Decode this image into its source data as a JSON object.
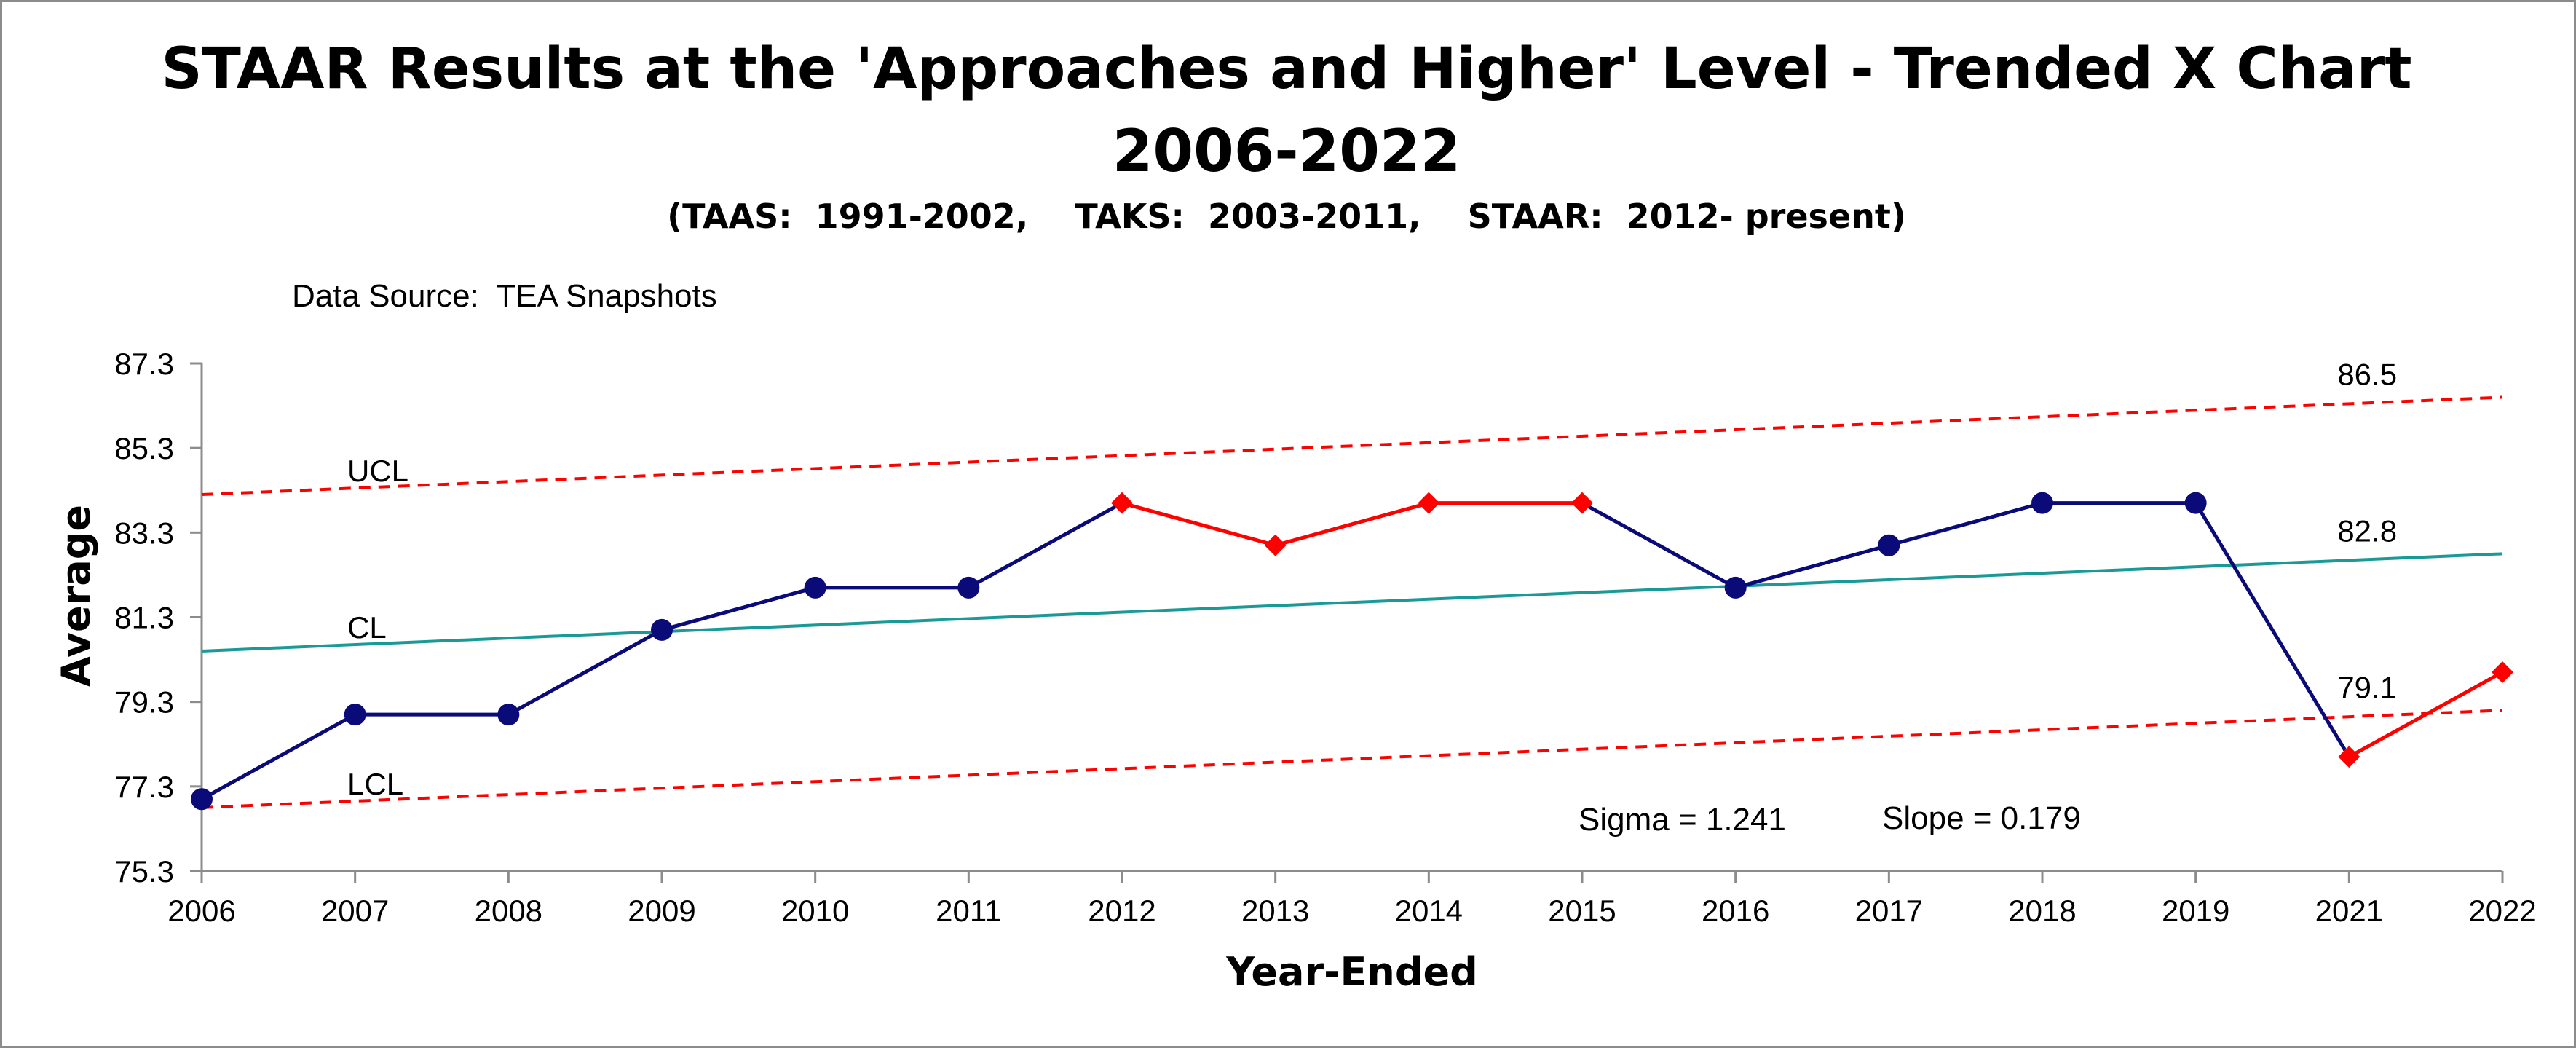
{
  "chart_data": {
    "type": "line",
    "title_line1": "STAAR Results at the 'Approaches and Higher' Level - Trended X Chart",
    "title_line2": "2006-2022",
    "subtitle": "(TAAS:  1991-2002,    TAKS:  2003-2011,    STAAR:  2012- present)",
    "source_note": "Data Source:  TEA Snapshots",
    "xlabel": "Year-Ended",
    "ylabel": "Average",
    "categories": [
      "2006",
      "2007",
      "2008",
      "2009",
      "2010",
      "2011",
      "2012",
      "2013",
      "2014",
      "2015",
      "2016",
      "2017",
      "2018",
      "2019",
      "2021",
      "2022"
    ],
    "yticks": [
      "75.3",
      "77.3",
      "79.3",
      "81.3",
      "83.3",
      "85.3",
      "87.3"
    ],
    "ylim": [
      75.3,
      87.3
    ],
    "series": [
      {
        "name": "Average",
        "values": [
          77.0,
          79.0,
          79.0,
          81.0,
          82.0,
          82.0,
          84.0,
          83.0,
          84.0,
          84.0,
          82.0,
          83.0,
          84.0,
          84.0,
          78.0,
          80.0
        ],
        "flagged": [
          false,
          false,
          false,
          false,
          false,
          false,
          true,
          true,
          true,
          true,
          false,
          false,
          false,
          false,
          true,
          true
        ],
        "color": "#0a0a78",
        "flag_color": "#ff0000"
      }
    ],
    "control_lines": [
      {
        "name": "UCL",
        "start": 84.2,
        "end": 86.5,
        "end_label": "86.5",
        "color": "#ff0000",
        "dashed": true
      },
      {
        "name": "CL",
        "start": 80.5,
        "end": 82.8,
        "end_label": "82.8",
        "color": "#1a9a96",
        "dashed": false
      },
      {
        "name": "LCL",
        "start": 76.8,
        "end": 79.1,
        "end_label": "79.1",
        "color": "#ff0000",
        "dashed": true
      }
    ],
    "annotations": {
      "sigma": "Sigma = 1.241",
      "slope": "Slope = 0.179"
    },
    "grid": false
  }
}
